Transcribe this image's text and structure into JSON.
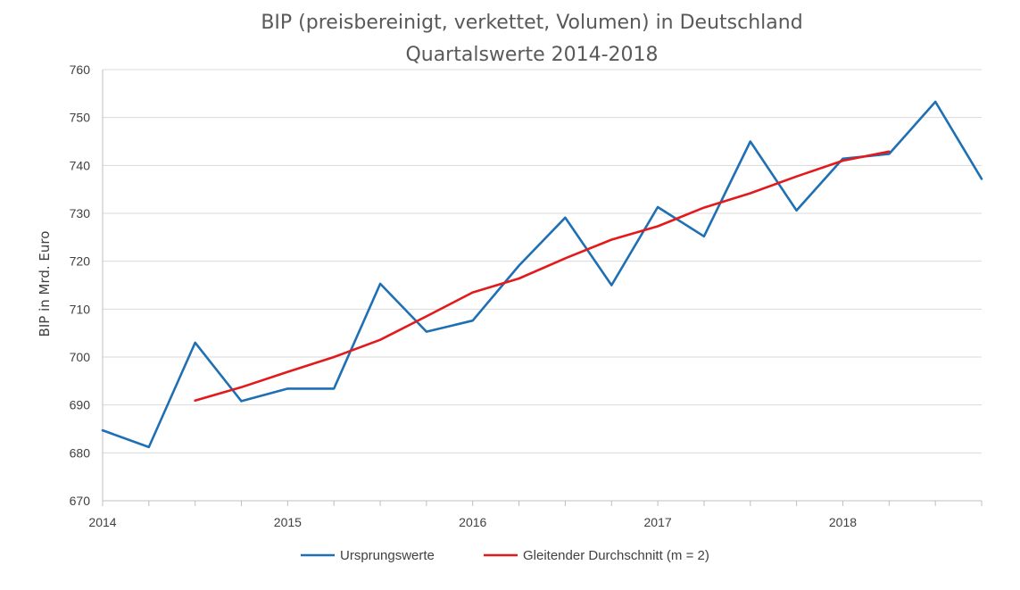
{
  "chart_data": {
    "type": "line",
    "title": "BIP (preisbereinigt, verkettet, Volumen) in Deutschland",
    "subtitle": "Quartalswerte 2014-2018",
    "xlabel": "",
    "ylabel": "BIP in Mrd. Euro",
    "ylim": [
      670,
      760
    ],
    "yticks": [
      670,
      680,
      690,
      700,
      710,
      720,
      730,
      740,
      750,
      760
    ],
    "xlim": [
      2014,
      2018.75
    ],
    "xticks": [
      2014,
      2015,
      2016,
      2017,
      2018
    ],
    "xtick_labels": [
      "2014",
      "2015",
      "2016",
      "2017",
      "2018"
    ],
    "grid": true,
    "legend_position": "bottom",
    "series": [
      {
        "name": "Ursprungswerte",
        "color": "#1f6fb4",
        "x": [
          2014,
          2014.25,
          2014.5,
          2014.75,
          2015,
          2015.25,
          2015.5,
          2015.75,
          2016,
          2016.25,
          2016.5,
          2016.75,
          2017,
          2017.25,
          2017.5,
          2017.75,
          2018,
          2018.25,
          2018.5,
          2018.75
        ],
        "values": [
          684.7,
          681.2,
          703.0,
          690.8,
          693.4,
          693.4,
          715.3,
          705.3,
          707.6,
          719.1,
          729.1,
          715.0,
          731.3,
          725.2,
          745.0,
          730.6,
          741.4,
          742.4,
          753.3,
          737.2
        ]
      },
      {
        "name": "Gleitender Durchschnitt (m = 2)",
        "color": "#e31a1c",
        "x": [
          2014.5,
          2014.75,
          2015,
          2015.25,
          2015.5,
          2015.75,
          2016,
          2016.25,
          2016.5,
          2016.75,
          2017,
          2017.25,
          2017.5,
          2017.75,
          2018,
          2018.25
        ],
        "values": [
          690.9,
          693.7,
          696.9,
          700.0,
          703.6,
          708.5,
          713.5,
          716.4,
          720.6,
          724.5,
          727.3,
          731.2,
          734.2,
          737.7,
          741.0,
          742.9
        ]
      }
    ]
  }
}
